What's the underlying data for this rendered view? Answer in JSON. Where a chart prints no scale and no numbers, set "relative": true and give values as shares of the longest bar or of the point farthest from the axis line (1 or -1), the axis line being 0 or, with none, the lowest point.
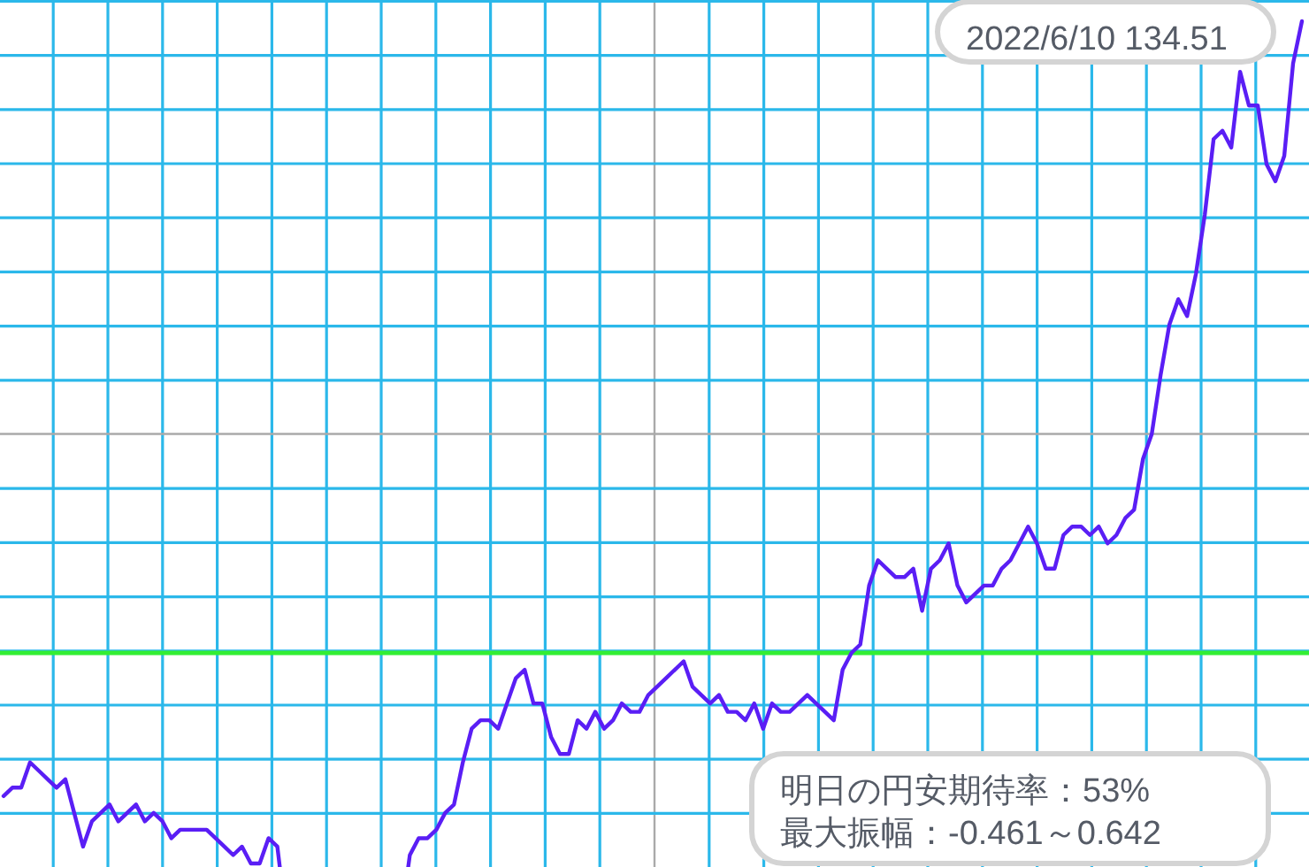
{
  "chart_data": {
    "type": "line",
    "relative": true,
    "grid": true,
    "categories": [
      null,
      null,
      null,
      null,
      null,
      null,
      null,
      null,
      null,
      null,
      null,
      null,
      null,
      null,
      null,
      null,
      null,
      null,
      null,
      null,
      null,
      null,
      null,
      null,
      null,
      null,
      null,
      null,
      null,
      null,
      null,
      null,
      null,
      null,
      null,
      null,
      null,
      null,
      null,
      null,
      null,
      null,
      null,
      null,
      null,
      null,
      null,
      null,
      null,
      null,
      null,
      null,
      null,
      null,
      null,
      null,
      null,
      null,
      null,
      null,
      null,
      null,
      null,
      null,
      null,
      null,
      null,
      null,
      null,
      null,
      null,
      null,
      null,
      null,
      null,
      null,
      null,
      null,
      null,
      null,
      null,
      null,
      null,
      null,
      null,
      null,
      null,
      null,
      null,
      null,
      null,
      null,
      null,
      null,
      null,
      null,
      null,
      null,
      null,
      null,
      null,
      null,
      null,
      null,
      null,
      null,
      null,
      null,
      null,
      null,
      null,
      null,
      null,
      null,
      null,
      null,
      null,
      null,
      null,
      null,
      null,
      null,
      null,
      null,
      null,
      null,
      null,
      null,
      null,
      null,
      null,
      null,
      null,
      null,
      null,
      null,
      null,
      null,
      null,
      null,
      null,
      null,
      null,
      null,
      null,
      null,
      null,
      null
    ],
    "series": [
      {
        "color": "#5a1ef5",
        "values": [
          0.08,
          0.09,
          0.09,
          0.12,
          0.11,
          0.1,
          0.09,
          0.1,
          0.06,
          0.02,
          0.05,
          0.06,
          0.07,
          0.05,
          0.06,
          0.07,
          0.05,
          0.06,
          0.05,
          0.03,
          0.04,
          0.04,
          0.04,
          0.04,
          0.03,
          0.02,
          0.01,
          0.02,
          0.0,
          0,
          0.03,
          0.02,
          null,
          null,
          null,
          null,
          null,
          null,
          null,
          null,
          null,
          null,
          null,
          null,
          null,
          null,
          0.01,
          0.03,
          0.03,
          0.04,
          0.06,
          0.07,
          0.12,
          0.16,
          0.17,
          0.17,
          0.16,
          0.19,
          0.22,
          0.23,
          0.19,
          0.19,
          0.15,
          0.13,
          0.13,
          0.17,
          0.16,
          0.18,
          0.16,
          0.17,
          0.19,
          0.18,
          0.18,
          0.2,
          0.21,
          0.22,
          0.23,
          0.24,
          0.21,
          0.2,
          0.19,
          0.2,
          0.18,
          0.18,
          0.17,
          0.19,
          0.16,
          0.19,
          0.18,
          0.18,
          0.19,
          0.2,
          0.19,
          0.18,
          0.17,
          0.23,
          0.25,
          0.26,
          0.33,
          0.36,
          0.35,
          0.34,
          0.34,
          0.35,
          0.3,
          0.35,
          0.36,
          0.38,
          0.33,
          0.31,
          0.32,
          0.33,
          0.33,
          0.35,
          0.36,
          0.38,
          0.4,
          0.38,
          0.35,
          0.35,
          0.39,
          0.4,
          0.4,
          0.39,
          0.4,
          0.38,
          0.39,
          0.41,
          0.42,
          0.48,
          0.51,
          0.58,
          0.64,
          0.67,
          0.65,
          0.7,
          0.77,
          0.86,
          0.87,
          0.85,
          0.94,
          0.9,
          0.9,
          0.83,
          0.81,
          0.84,
          0.95,
          1
        ]
      }
    ],
    "ref_lines": [
      {
        "axis": "y",
        "value": 0.25,
        "color": "#33ee33"
      },
      {
        "axis": "y",
        "value": 0.51,
        "color": "#aaaaaa"
      }
    ],
    "annotations": [
      "2022/6/10 134.51",
      "明日の円安期待率：53%",
      "最大振幅：-0.461～0.642"
    ]
  }
}
